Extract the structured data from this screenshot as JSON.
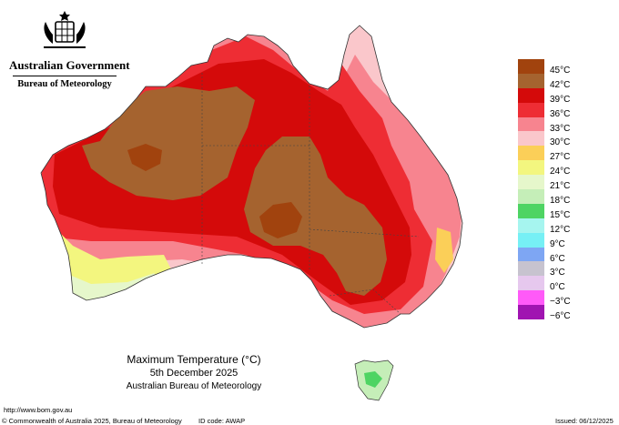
{
  "header": {
    "government": "Australian Government",
    "bureau": "Bureau of Meteorology"
  },
  "map": {
    "title": "Maximum Temperature (°C)",
    "date": "5th December 2025",
    "agency": "Australian Bureau of Meteorology",
    "region": "Australia"
  },
  "legend": [
    {
      "label": "45°C",
      "color": "#a1430e"
    },
    {
      "label": "42°C",
      "color": "#a5632f"
    },
    {
      "label": "39°C",
      "color": "#d40a0a"
    },
    {
      "label": "36°C",
      "color": "#ee2d34"
    },
    {
      "label": "33°C",
      "color": "#f7848f"
    },
    {
      "label": "30°C",
      "color": "#fac7cb"
    },
    {
      "label": "27°C",
      "color": "#fbcf58"
    },
    {
      "label": "24°C",
      "color": "#f3f67f"
    },
    {
      "label": "21°C",
      "color": "#e6f7cb"
    },
    {
      "label": "18°C",
      "color": "#c5eeb8"
    },
    {
      "label": "15°C",
      "color": "#4ed463"
    },
    {
      "label": "12°C",
      "color": "#a6f5ef"
    },
    {
      "label": "9°C",
      "color": "#76f0f5"
    },
    {
      "label": "6°C",
      "color": "#7ea6f3"
    },
    {
      "label": "3°C",
      "color": "#c7c3cf"
    },
    {
      "label": "0°C",
      "color": "#e6c8ee"
    },
    {
      "label": "−3°C",
      "color": "#ff5af8"
    },
    {
      "label": "−6°C",
      "color": "#a014b1"
    }
  ],
  "footer": {
    "url": "http://www.bom.gov.au",
    "copyright": "© Commonwealth of Australia 2025, Bureau of Meteorology",
    "id_code": "ID code: AWAP",
    "issued": "Issued: 06/12/2025"
  }
}
